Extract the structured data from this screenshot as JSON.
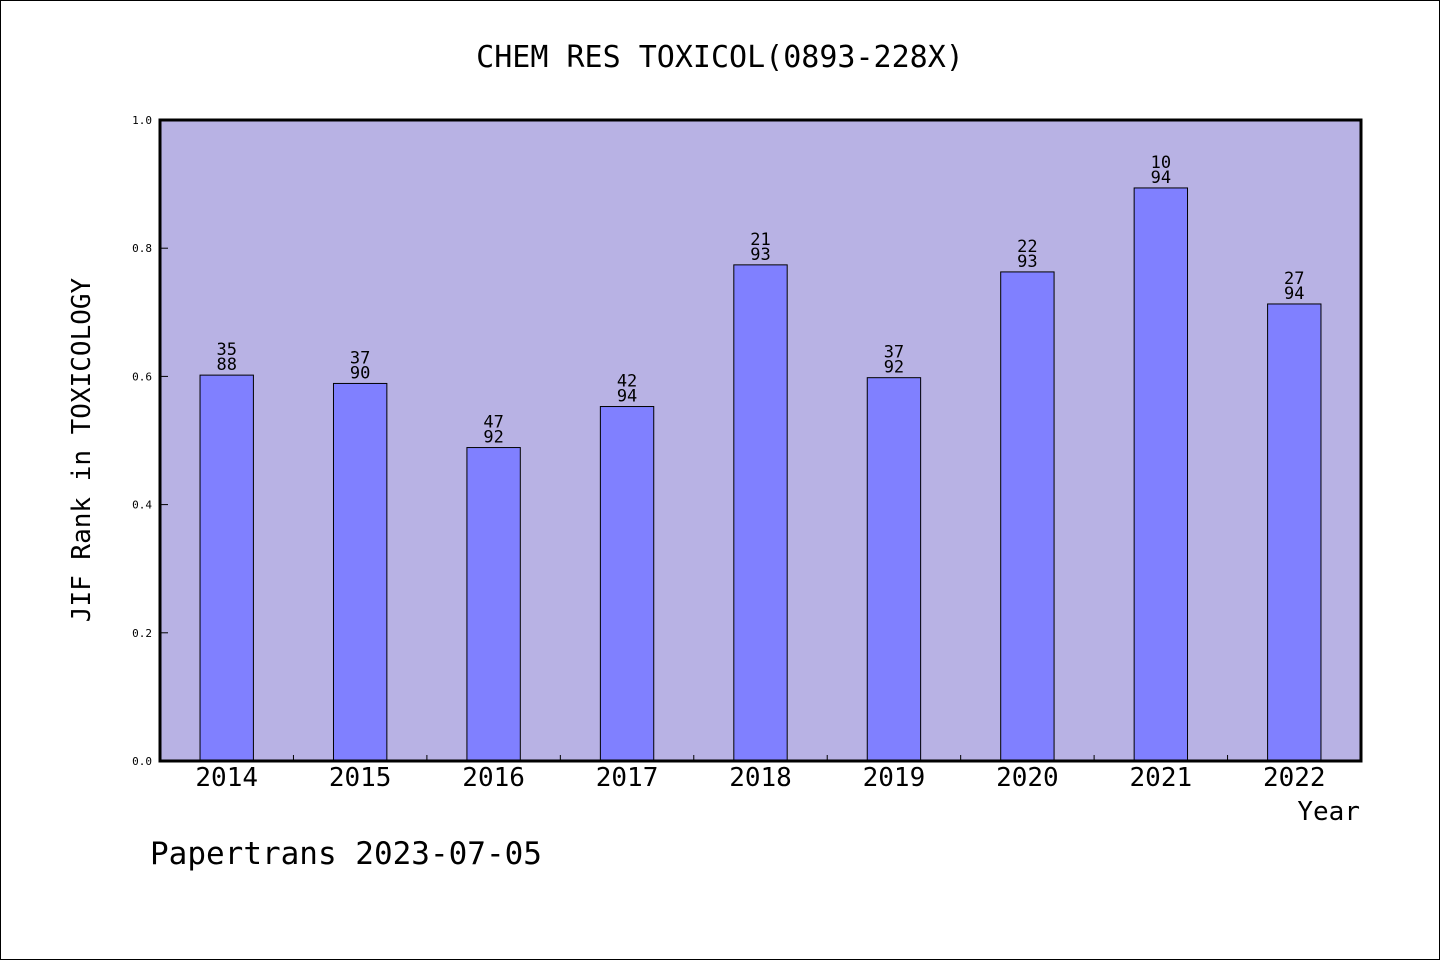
{
  "chart_data": {
    "type": "bar",
    "title": "CHEM RES TOXICOL(0893-228X)",
    "xlabel": "Year",
    "ylabel": "JIF Rank in TOXICOLOGY",
    "ylim": [
      0,
      1.0
    ],
    "yticks": [
      "0.0",
      "0.2",
      "0.4",
      "0.6",
      "0.8",
      "1.0"
    ],
    "categories": [
      "2014",
      "2015",
      "2016",
      "2017",
      "2018",
      "2019",
      "2020",
      "2021",
      "2022"
    ],
    "values": [
      0.602,
      0.589,
      0.489,
      0.553,
      0.774,
      0.598,
      0.763,
      0.894,
      0.713
    ],
    "labels": [
      {
        "top": "35",
        "bottom": "88"
      },
      {
        "top": "37",
        "bottom": "90"
      },
      {
        "top": "47",
        "bottom": "92"
      },
      {
        "top": "42",
        "bottom": "94"
      },
      {
        "top": "21",
        "bottom": "93"
      },
      {
        "top": "37",
        "bottom": "92"
      },
      {
        "top": "22",
        "bottom": "93"
      },
      {
        "top": "10",
        "bottom": "94"
      },
      {
        "top": "27",
        "bottom": "94"
      }
    ],
    "grid": false,
    "colors": {
      "plot_background": "#b8b2e4",
      "bar_fill": "#8080ff",
      "bar_stroke": "#000000"
    }
  },
  "footer": {
    "text": "Papertrans 2023-07-05"
  }
}
